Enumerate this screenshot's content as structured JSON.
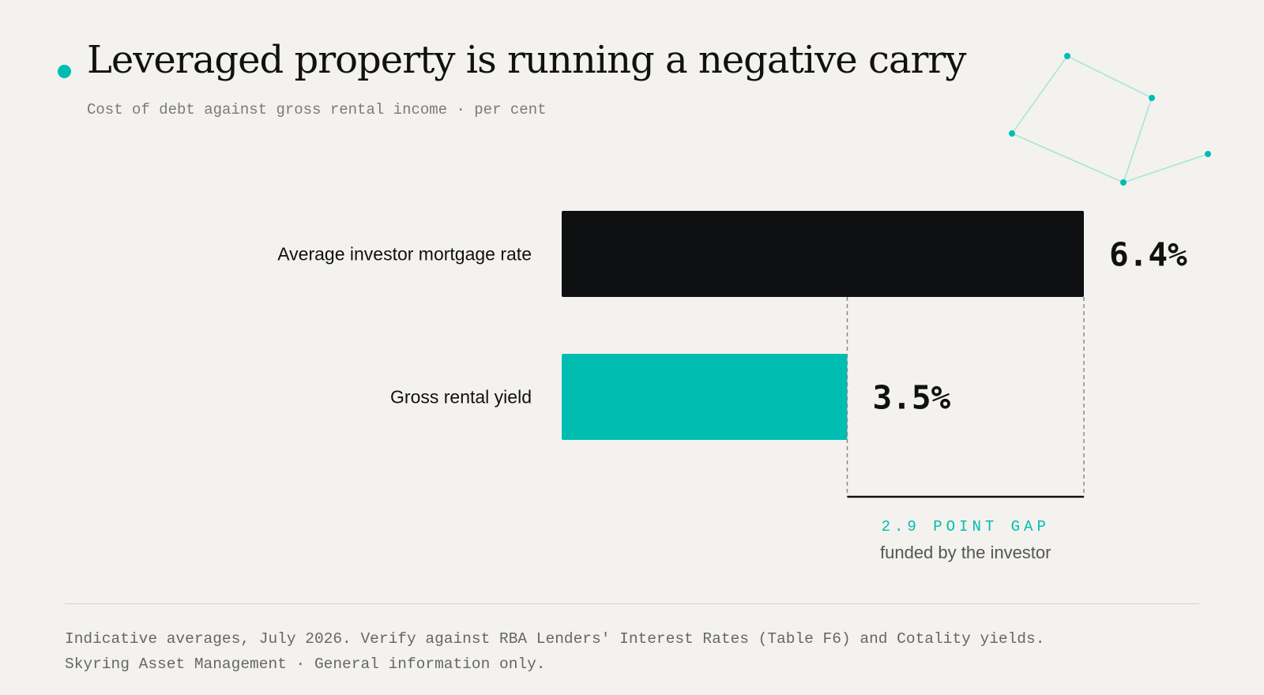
{
  "title": "Leveraged property is running a negative carry",
  "subtitle": "Cost of debt against gross rental income · per cent",
  "colors": {
    "accent": "#00bdb1",
    "dark": "#0f1011",
    "background": "#f3f2ee",
    "decoration": "#9fe2dc"
  },
  "chart_data": {
    "type": "bar",
    "orientation": "horizontal",
    "categories": [
      "Average investor mortgage rate",
      "Gross rental yield"
    ],
    "values": [
      6.4,
      3.5
    ],
    "value_labels": [
      "6.4%",
      "3.5%"
    ],
    "bar_colors": [
      "#0f1011",
      "#00bdb1"
    ],
    "unit": "%",
    "xlim": [
      0,
      6.4
    ],
    "grid": false,
    "annotation": {
      "from": 3.5,
      "to": 6.4,
      "label": "2.9 POINT GAP",
      "sublabel": "funded by the investor"
    }
  },
  "footnote": {
    "line1": "Indicative averages, July 2026. Verify against RBA Lenders' Interest Rates (Table F6) and Cotality yields.",
    "line2": "Skyring Asset Management · General information only."
  }
}
